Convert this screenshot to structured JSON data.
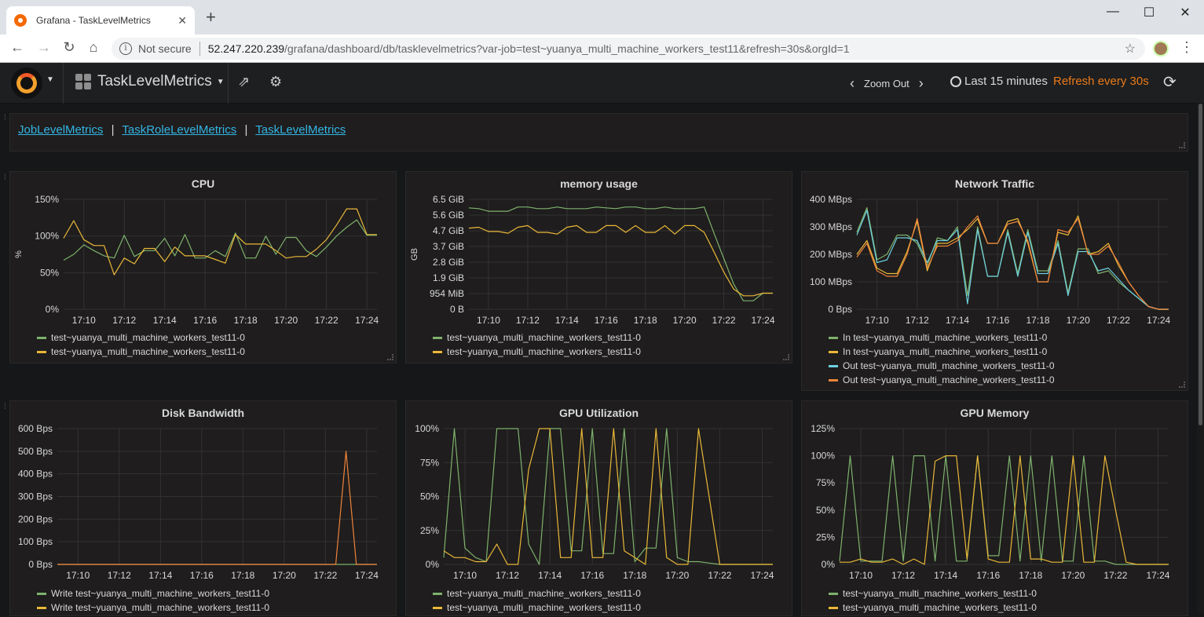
{
  "browser": {
    "tab_title": "Grafana - TaskLevelMetrics",
    "tab_close": "✕",
    "new_tab": "+",
    "not_secure": "Not secure",
    "url_host": "52.247.220.239",
    "url_path": "/grafana/dashboard/db/tasklevelmetrics?var-job=test~yuanya_multi_machine_workers_test11&refresh=30s&orgId=1"
  },
  "navbar": {
    "dashboard_title": "TaskLevelMetrics",
    "zoom_out": "Zoom Out",
    "time_range": "Last 15 minutes",
    "refresh": "Refresh every 30s"
  },
  "links": {
    "items": [
      "JobLevelMetrics",
      "TaskRoleLevelMetrics",
      "TaskLevelMetrics"
    ],
    "separator": "|"
  },
  "colors": {
    "green": "#7eb26d",
    "yellow": "#eab839",
    "cyan": "#6ed0e0",
    "orange": "#ef843c",
    "link": "#33b5e5",
    "refresh": "#eb7b18"
  },
  "x_ticks": [
    "17:10",
    "17:12",
    "17:14",
    "17:16",
    "17:18",
    "17:20",
    "17:22",
    "17:24"
  ],
  "panels": {
    "cpu": {
      "title": "CPU",
      "ylabel": "%",
      "yticks": [
        "150%",
        "100%",
        "50%",
        "0%"
      ],
      "legend": [
        "test~yuanya_multi_machine_workers_test11-0",
        "test~yuanya_multi_machine_workers_test11-0"
      ]
    },
    "memory": {
      "title": "memory usage",
      "ylabel": "GB",
      "yticks": [
        "6.5 GiB",
        "5.6 GiB",
        "4.7 GiB",
        "3.7 GiB",
        "2.8 GiB",
        "1.9 GiB",
        "954 MiB",
        "0 B"
      ],
      "legend": [
        "test~yuanya_multi_machine_workers_test11-0",
        "test~yuanya_multi_machine_workers_test11-0"
      ]
    },
    "network": {
      "title": "Network Traffic",
      "yticks": [
        "400 MBps",
        "300 MBps",
        "200 MBps",
        "100 MBps",
        "0 Bps"
      ],
      "legend": [
        "In test~yuanya_multi_machine_workers_test11-0",
        "In test~yuanya_multi_machine_workers_test11-0",
        "Out test~yuanya_multi_machine_workers_test11-0",
        "Out test~yuanya_multi_machine_workers_test11-0"
      ]
    },
    "disk": {
      "title": "Disk Bandwidth",
      "yticks": [
        "600 Bps",
        "500 Bps",
        "400 Bps",
        "300 Bps",
        "200 Bps",
        "100 Bps",
        "0 Bps"
      ],
      "legend": [
        "Write test~yuanya_multi_machine_workers_test11-0",
        "Write test~yuanya_multi_machine_workers_test11-0"
      ]
    },
    "gpu_util": {
      "title": "GPU Utilization",
      "yticks": [
        "100%",
        "75%",
        "50%",
        "25%",
        "0%"
      ],
      "legend": [
        "test~yuanya_multi_machine_workers_test11-0",
        "test~yuanya_multi_machine_workers_test11-0"
      ]
    },
    "gpu_mem": {
      "title": "GPU Memory",
      "yticks": [
        "125%",
        "100%",
        "75%",
        "50%",
        "25%",
        "0%"
      ],
      "legend": [
        "test~yuanya_multi_machine_workers_test11-0",
        "test~yuanya_multi_machine_workers_test11-0"
      ]
    }
  },
  "chart_data": [
    {
      "type": "line",
      "title": "CPU",
      "ylabel": "%",
      "ylim": [
        0,
        150
      ],
      "x": [
        "17:09",
        "17:09:30",
        "17:10",
        "17:10:30",
        "17:11",
        "17:11:30",
        "17:12",
        "17:12:30",
        "17:13",
        "17:13:30",
        "17:14",
        "17:14:30",
        "17:15",
        "17:15:30",
        "17:16",
        "17:16:30",
        "17:17",
        "17:17:30",
        "17:18",
        "17:18:30",
        "17:19",
        "17:19:30",
        "17:20",
        "17:20:30",
        "17:21",
        "17:21:30",
        "17:22",
        "17:22:30",
        "17:23",
        "17:23:30",
        "17:24",
        "17:24:30"
      ],
      "series": [
        {
          "name": "test~yuanya_multi_machine_workers_test11-0",
          "color": "#7eb26d",
          "values": [
            67,
            75,
            88,
            80,
            73,
            70,
            101,
            72,
            80,
            80,
            97,
            73,
            102,
            70,
            70,
            80,
            72,
            104,
            70,
            70,
            100,
            75,
            98,
            98,
            80,
            72,
            85,
            100,
            112,
            122,
            101,
            101
          ]
        },
        {
          "name": "test~yuanya_multi_machine_workers_test11-0",
          "color": "#eab839",
          "values": [
            97,
            121,
            95,
            87,
            87,
            47,
            70,
            62,
            83,
            83,
            65,
            85,
            73,
            73,
            73,
            68,
            63,
            102,
            89,
            89,
            89,
            80,
            70,
            72,
            72,
            82,
            95,
            115,
            137,
            137,
            102,
            102
          ]
        }
      ]
    },
    {
      "type": "line",
      "title": "memory usage",
      "ylabel": "GB",
      "ylim": [
        0,
        6.5
      ],
      "x": [
        "17:09",
        "17:09:30",
        "17:10",
        "17:10:30",
        "17:11",
        "17:11:30",
        "17:12",
        "17:12:30",
        "17:13",
        "17:13:30",
        "17:14",
        "17:14:30",
        "17:15",
        "17:15:30",
        "17:16",
        "17:16:30",
        "17:17",
        "17:17:30",
        "17:18",
        "17:18:30",
        "17:19",
        "17:19:30",
        "17:20",
        "17:20:30",
        "17:21",
        "17:21:30",
        "17:22",
        "17:22:30",
        "17:23",
        "17:23:30",
        "17:24",
        "17:24:30"
      ],
      "series": [
        {
          "name": "test~yuanya_multi_machine_workers_test11-0",
          "color": "#7eb26d",
          "values": [
            6.0,
            5.95,
            5.8,
            5.8,
            5.8,
            6.05,
            6.05,
            5.95,
            5.95,
            6.05,
            5.95,
            5.95,
            5.95,
            6.05,
            6.0,
            5.95,
            6.05,
            6.05,
            5.95,
            5.95,
            6.05,
            5.95,
            5.95,
            5.95,
            6.05,
            4.5,
            3.0,
            1.5,
            0.5,
            0.5,
            0.95,
            0.95
          ]
        },
        {
          "name": "test~yuanya_multi_machine_workers_test11-0",
          "color": "#eab839",
          "values": [
            4.8,
            4.85,
            4.6,
            4.6,
            4.5,
            4.85,
            4.95,
            4.55,
            4.55,
            4.45,
            4.85,
            4.95,
            4.55,
            4.55,
            4.95,
            4.95,
            4.55,
            4.95,
            4.55,
            4.55,
            4.95,
            4.45,
            4.95,
            4.95,
            4.55,
            3.4,
            2.2,
            1.2,
            0.8,
            0.8,
            0.95,
            0.95
          ]
        }
      ]
    },
    {
      "type": "line",
      "title": "Network Traffic",
      "ylim": [
        0,
        400
      ],
      "x": [
        "17:09",
        "17:09:30",
        "17:10",
        "17:10:30",
        "17:11",
        "17:11:30",
        "17:12",
        "17:12:30",
        "17:13",
        "17:13:30",
        "17:14",
        "17:14:30",
        "17:15",
        "17:15:30",
        "17:16",
        "17:16:30",
        "17:17",
        "17:17:30",
        "17:18",
        "17:18:30",
        "17:19",
        "17:19:30",
        "17:20",
        "17:20:30",
        "17:21",
        "17:21:30",
        "17:22",
        "17:22:30",
        "17:23",
        "17:23:30",
        "17:24",
        "17:24:30"
      ],
      "series": [
        {
          "name": "In test~yuanya_multi_machine_workers_test11-0",
          "color": "#7eb26d",
          "values": [
            280,
            370,
            180,
            200,
            270,
            270,
            240,
            160,
            260,
            250,
            300,
            50,
            300,
            120,
            120,
            290,
            130,
            290,
            140,
            140,
            250,
            60,
            220,
            220,
            130,
            140,
            100,
            70,
            40,
            10,
            0,
            0
          ]
        },
        {
          "name": "In test~yuanya_multi_machine_workers_test11-0",
          "color": "#eab839",
          "values": [
            200,
            250,
            150,
            130,
            130,
            210,
            320,
            140,
            240,
            240,
            260,
            290,
            330,
            240,
            240,
            320,
            330,
            240,
            100,
            100,
            280,
            270,
            340,
            200,
            210,
            240,
            160,
            100,
            50,
            10,
            0,
            0
          ]
        },
        {
          "name": "Out test~yuanya_multi_machine_workers_test11-0",
          "color": "#6ed0e0",
          "values": [
            270,
            360,
            170,
            180,
            260,
            260,
            250,
            170,
            250,
            250,
            290,
            20,
            290,
            120,
            120,
            280,
            120,
            280,
            130,
            130,
            240,
            50,
            210,
            210,
            140,
            150,
            110,
            70,
            40,
            10,
            0,
            0
          ]
        },
        {
          "name": "Out test~yuanya_multi_machine_workers_test11-0",
          "color": "#ef843c",
          "values": [
            190,
            240,
            140,
            120,
            120,
            200,
            330,
            150,
            230,
            230,
            250,
            300,
            340,
            240,
            240,
            310,
            320,
            250,
            100,
            100,
            290,
            280,
            330,
            200,
            200,
            230,
            170,
            100,
            50,
            10,
            0,
            0
          ]
        }
      ]
    },
    {
      "type": "line",
      "title": "Disk Bandwidth",
      "ylim": [
        0,
        600
      ],
      "x": [
        "17:09",
        "17:09:30",
        "17:10",
        "17:10:30",
        "17:11",
        "17:11:30",
        "17:12",
        "17:12:30",
        "17:13",
        "17:13:30",
        "17:14",
        "17:14:30",
        "17:15",
        "17:15:30",
        "17:16",
        "17:16:30",
        "17:17",
        "17:17:30",
        "17:18",
        "17:18:30",
        "17:19",
        "17:19:30",
        "17:20",
        "17:20:30",
        "17:21",
        "17:21:30",
        "17:22",
        "17:22:30",
        "17:23",
        "17:23:30",
        "17:24",
        "17:24:30"
      ],
      "series": [
        {
          "name": "Write test~yuanya_multi_machine_workers_test11-0",
          "color": "#7eb26d",
          "values": [
            0,
            0,
            0,
            0,
            0,
            0,
            0,
            0,
            0,
            0,
            0,
            0,
            0,
            0,
            0,
            0,
            0,
            0,
            0,
            0,
            0,
            0,
            0,
            0,
            0,
            0,
            0,
            0,
            0,
            0,
            0,
            0
          ]
        },
        {
          "name": "Write test~yuanya_multi_machine_workers_test11-0",
          "color": "#ef843c",
          "values": [
            0,
            0,
            0,
            0,
            0,
            0,
            0,
            0,
            0,
            0,
            0,
            0,
            0,
            0,
            0,
            0,
            0,
            0,
            0,
            0,
            0,
            0,
            0,
            0,
            0,
            0,
            0,
            0,
            500,
            0,
            0,
            0
          ]
        }
      ]
    },
    {
      "type": "line",
      "title": "GPU Utilization",
      "ylim": [
        0,
        100
      ],
      "x": [
        "17:09",
        "17:09:30",
        "17:10",
        "17:10:30",
        "17:11",
        "17:11:30",
        "17:12",
        "17:12:30",
        "17:13",
        "17:13:30",
        "17:14",
        "17:14:30",
        "17:15",
        "17:15:30",
        "17:16",
        "17:16:30",
        "17:17",
        "17:17:30",
        "17:18",
        "17:18:30",
        "17:19",
        "17:19:30",
        "17:20",
        "17:20:30",
        "17:21",
        "17:21:30",
        "17:22",
        "17:22:30",
        "17:23",
        "17:23:30",
        "17:24",
        "17:24:30"
      ],
      "series": [
        {
          "name": "test~yuanya_multi_machine_workers_test11-0",
          "color": "#7eb26d",
          "values": [
            5,
            100,
            12,
            5,
            2,
            100,
            100,
            100,
            15,
            0,
            100,
            100,
            10,
            10,
            100,
            8,
            8,
            100,
            2,
            12,
            12,
            100,
            5,
            2,
            2,
            1,
            0,
            0,
            0,
            0,
            0,
            0
          ]
        },
        {
          "name": "test~yuanya_multi_machine_workers_test11-0",
          "color": "#eab839",
          "values": [
            10,
            5,
            5,
            2,
            2,
            15,
            0,
            0,
            70,
            100,
            100,
            5,
            5,
            100,
            5,
            5,
            100,
            10,
            5,
            0,
            100,
            5,
            0,
            0,
            100,
            50,
            0,
            0,
            0,
            0,
            0,
            0
          ]
        }
      ]
    },
    {
      "type": "line",
      "title": "GPU Memory",
      "ylim": [
        0,
        125
      ],
      "x": [
        "17:09",
        "17:09:30",
        "17:10",
        "17:10:30",
        "17:11",
        "17:11:30",
        "17:12",
        "17:12:30",
        "17:13",
        "17:13:30",
        "17:14",
        "17:14:30",
        "17:15",
        "17:15:30",
        "17:16",
        "17:16:30",
        "17:17",
        "17:17:30",
        "17:18",
        "17:18:30",
        "17:19",
        "17:19:30",
        "17:20",
        "17:20:30",
        "17:21",
        "17:21:30",
        "17:22",
        "17:22:30",
        "17:23",
        "17:23:30",
        "17:24",
        "17:24:30"
      ],
      "series": [
        {
          "name": "test~yuanya_multi_machine_workers_test11-0",
          "color": "#7eb26d",
          "values": [
            3,
            100,
            3,
            3,
            3,
            100,
            3,
            100,
            100,
            3,
            100,
            3,
            3,
            100,
            8,
            8,
            100,
            3,
            100,
            3,
            100,
            3,
            3,
            100,
            3,
            3,
            0,
            0,
            0,
            0,
            0,
            0
          ]
        },
        {
          "name": "test~yuanya_multi_machine_workers_test11-0",
          "color": "#eab839",
          "values": [
            2,
            2,
            5,
            2,
            2,
            5,
            0,
            5,
            0,
            95,
            100,
            100,
            5,
            100,
            5,
            2,
            2,
            100,
            5,
            5,
            2,
            2,
            100,
            2,
            2,
            100,
            50,
            2,
            0,
            0,
            0,
            0
          ]
        }
      ]
    }
  ]
}
